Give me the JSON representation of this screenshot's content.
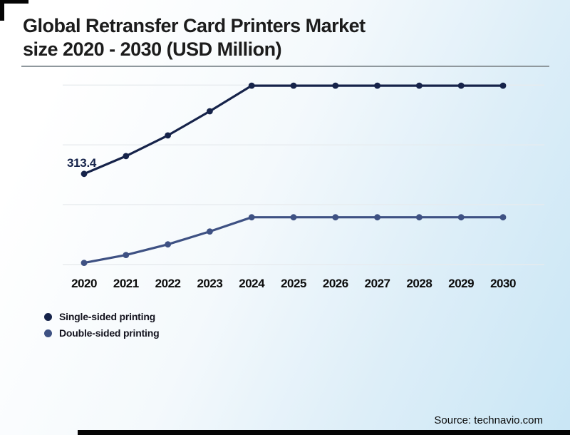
{
  "header": {
    "title": "Global Retransfer Card Printers Market\nsize 2020 - 2030 (USD Million)"
  },
  "source": {
    "label": "Source: technavio.com"
  },
  "legend": {
    "position": "bottom-left",
    "items": [
      {
        "label": "Single-sided printing",
        "color": "#16234a"
      },
      {
        "label": "Double-sided printing",
        "color": "#3e5183"
      }
    ]
  },
  "chart_data": {
    "type": "line",
    "title": "Global Retransfer Card Printers Market size 2020 - 2030 (USD Million)",
    "unit": "USD Million",
    "categories": [
      "2020",
      "2021",
      "2022",
      "2023",
      "2024",
      "2025",
      "2026",
      "2027",
      "2028",
      "2029",
      "2030"
    ],
    "series": [
      {
        "name": "Single-sided printing",
        "color": "#16234a",
        "values": [
          313.4,
          343.2,
          377.7,
          418.2,
          461.0,
          461.0,
          461.0,
          461.0,
          461.0,
          461.0,
          461.0
        ],
        "point_labels": {
          "2020": "313.4"
        }
      },
      {
        "name": "Double-sided printing",
        "color": "#3e5183",
        "values": [
          164.6,
          177.7,
          195.5,
          217.0,
          240.8,
          240.8,
          240.8,
          240.8,
          240.8,
          240.8,
          240.8
        ]
      }
    ],
    "ylim": [
      145,
      485
    ],
    "gridline_values": [
      162,
      262,
      362,
      462
    ],
    "grid": "horizontal-only",
    "xlabel": "",
    "ylabel": "",
    "y_axis_labels_shown": false
  }
}
